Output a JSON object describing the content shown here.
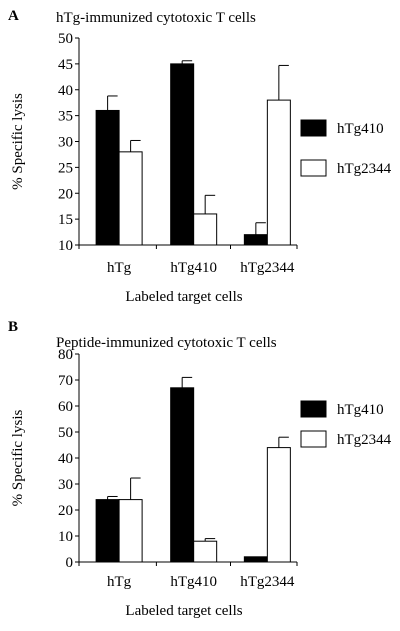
{
  "chart_data": [
    {
      "panel": "A",
      "type": "bar",
      "title": "hTg-immunized cytotoxic T cells",
      "xlabel": "Labeled target cells",
      "ylabel": "% Specific lysis",
      "categories": [
        "hTg",
        "hTg410",
        "hTg2344"
      ],
      "ylim": [
        10,
        50
      ],
      "yticks": [
        10,
        15,
        20,
        25,
        30,
        35,
        40,
        45,
        50
      ],
      "legend_position": "right",
      "grid": false,
      "series": [
        {
          "name": "hTg410",
          "color": "#000000",
          "values": [
            36,
            45,
            12
          ],
          "errors": [
            2.8,
            0.6,
            2.3
          ]
        },
        {
          "name": "hTg2344",
          "color": "#ffffff",
          "values": [
            28,
            16,
            38
          ],
          "errors": [
            2.2,
            3.6,
            6.7
          ]
        }
      ]
    },
    {
      "panel": "B",
      "type": "bar",
      "title": "Peptide-immunized cytotoxic T cells",
      "xlabel": "Labeled target cells",
      "ylabel": "% Specific lysis",
      "categories": [
        "hTg",
        "hTg410",
        "hTg2344"
      ],
      "ylim": [
        0,
        80
      ],
      "yticks": [
        0,
        10,
        20,
        30,
        40,
        50,
        60,
        70,
        80
      ],
      "legend_position": "right",
      "grid": false,
      "series": [
        {
          "name": "hTg410",
          "color": "#000000",
          "values": [
            24,
            67,
            2
          ],
          "errors": [
            1.2,
            4,
            0
          ]
        },
        {
          "name": "hTg2344",
          "color": "#ffffff",
          "values": [
            24,
            8,
            44
          ],
          "errors": [
            8.3,
            1,
            4
          ]
        }
      ]
    }
  ]
}
